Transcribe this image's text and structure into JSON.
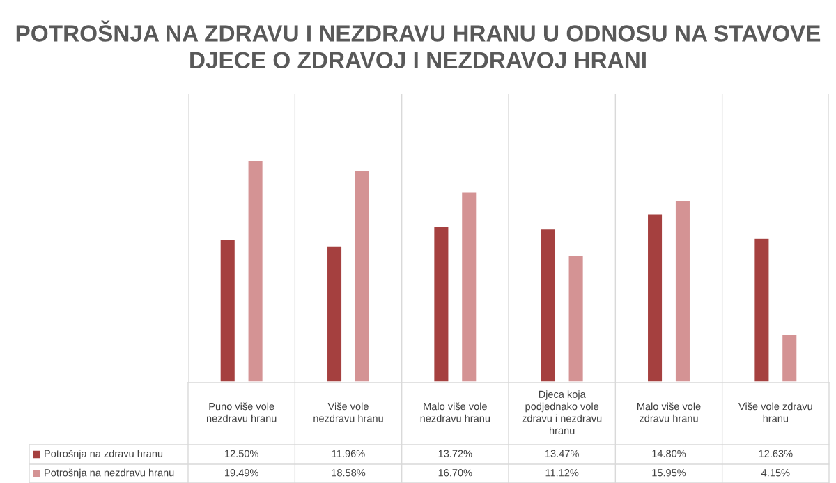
{
  "chart_data": {
    "type": "bar",
    "title": "POTROŠNJA NA ZDRAVU I NEZDRAVU HRANU U ODNOSU NA STAVOVE DJECE O ZDRAVOJ I NEZDRAVOJ HRANI",
    "legend": "bottom",
    "categories": [
      "Puno više vole nezdravu hranu",
      "Više vole nezdravu hranu",
      "Malo više vole nezdravu hranu",
      "Djeca koja podjednako vole zdravu i nezdravu hranu",
      "Malo više vole zdravu hranu",
      "Više vole zdravu hranu"
    ],
    "series": [
      {
        "name": "Potrošnja na zdravu hranu",
        "color": "#a5403f",
        "values": [
          12.5,
          11.96,
          13.72,
          13.47,
          14.8,
          12.63
        ],
        "value_labels": [
          "12.50%",
          "11.96%",
          "13.72%",
          "13.47%",
          "14.80%",
          "12.63%"
        ]
      },
      {
        "name": "Potrošnja na nezdravu hranu",
        "color": "#d49394",
        "values": [
          19.49,
          18.58,
          16.7,
          11.12,
          15.95,
          4.15
        ],
        "value_labels": [
          "19.49%",
          "18.58%",
          "16.70%",
          "11.12%",
          "15.95%",
          "4.15%"
        ]
      }
    ]
  }
}
